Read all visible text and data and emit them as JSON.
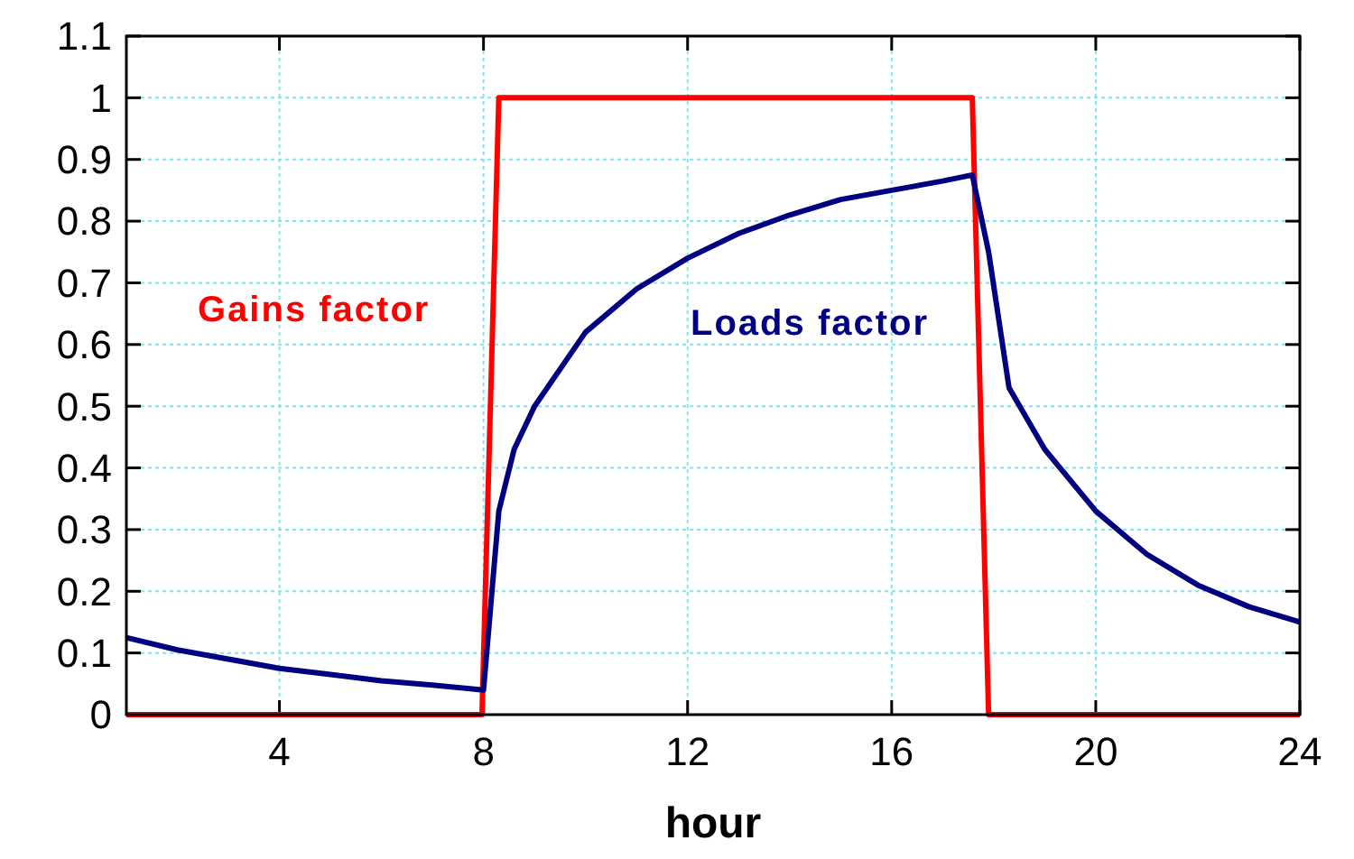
{
  "chart_data": {
    "type": "line",
    "xlabel": "hour",
    "xlim": [
      1,
      24
    ],
    "xticks": [
      4,
      8,
      12,
      16,
      20,
      24
    ],
    "ylim": [
      0,
      1.1
    ],
    "yticks": [
      0,
      0.1,
      0.2,
      0.3,
      0.4,
      0.5,
      0.6,
      0.7,
      0.8,
      0.9,
      1,
      1.1
    ],
    "grid": true,
    "marker": "none",
    "line_style": "solid",
    "series": [
      {
        "name": "Gains factor",
        "color": "#ff0000",
        "x": [
          1,
          7.97,
          8.3,
          17.58,
          17.9,
          24
        ],
        "values": [
          0,
          0,
          1,
          1,
          0,
          0
        ]
      },
      {
        "name": "Loads factor",
        "color": "#000080",
        "x": [
          1,
          2,
          3,
          4,
          5,
          6,
          7,
          8,
          8.3,
          8.6,
          9,
          10,
          11,
          12,
          13,
          14,
          15,
          16,
          17,
          17.58,
          17.9,
          18.3,
          19,
          20,
          21,
          22,
          23,
          24
        ],
        "values": [
          0.125,
          0.105,
          0.09,
          0.075,
          0.065,
          0.055,
          0.048,
          0.04,
          0.33,
          0.43,
          0.5,
          0.62,
          0.69,
          0.74,
          0.78,
          0.81,
          0.835,
          0.85,
          0.865,
          0.875,
          0.75,
          0.53,
          0.43,
          0.33,
          0.26,
          0.21,
          0.175,
          0.15
        ]
      }
    ]
  }
}
